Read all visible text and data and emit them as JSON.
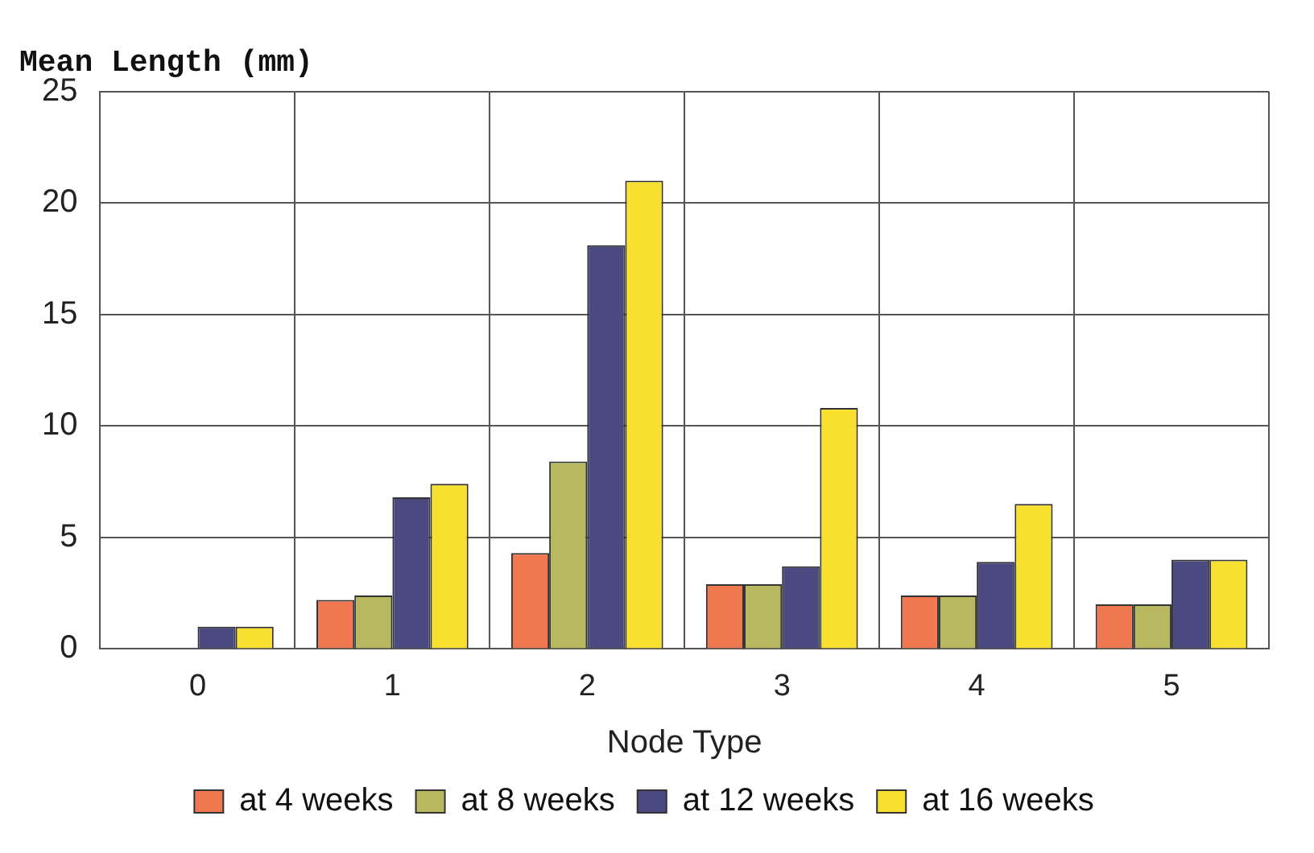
{
  "chart_data": {
    "type": "bar",
    "title": "Mean Length (mm)",
    "xlabel": "Node Type",
    "categories": [
      "0",
      "1",
      "2",
      "3",
      "4",
      "5"
    ],
    "series": [
      {
        "name": "at 4 weeks",
        "color": "#f07850",
        "values": [
          0,
          2.2,
          4.3,
          2.9,
          2.4,
          2.0
        ]
      },
      {
        "name": "at 8 weeks",
        "color": "#b8b860",
        "values": [
          0,
          2.4,
          8.4,
          2.9,
          2.4,
          2.0
        ]
      },
      {
        "name": "at 12 weeks",
        "color": "#4a4a80",
        "values": [
          1.0,
          6.8,
          18.1,
          3.7,
          3.9,
          4.0
        ]
      },
      {
        "name": "at 16 weeks",
        "color": "#f8e030",
        "values": [
          1.0,
          7.4,
          21.0,
          10.8,
          6.5,
          4.0
        ]
      }
    ],
    "ylim": [
      0,
      25
    ],
    "yticks": [
      0,
      5,
      10,
      15,
      20,
      25
    ],
    "grid": true,
    "legend": "bottom"
  }
}
